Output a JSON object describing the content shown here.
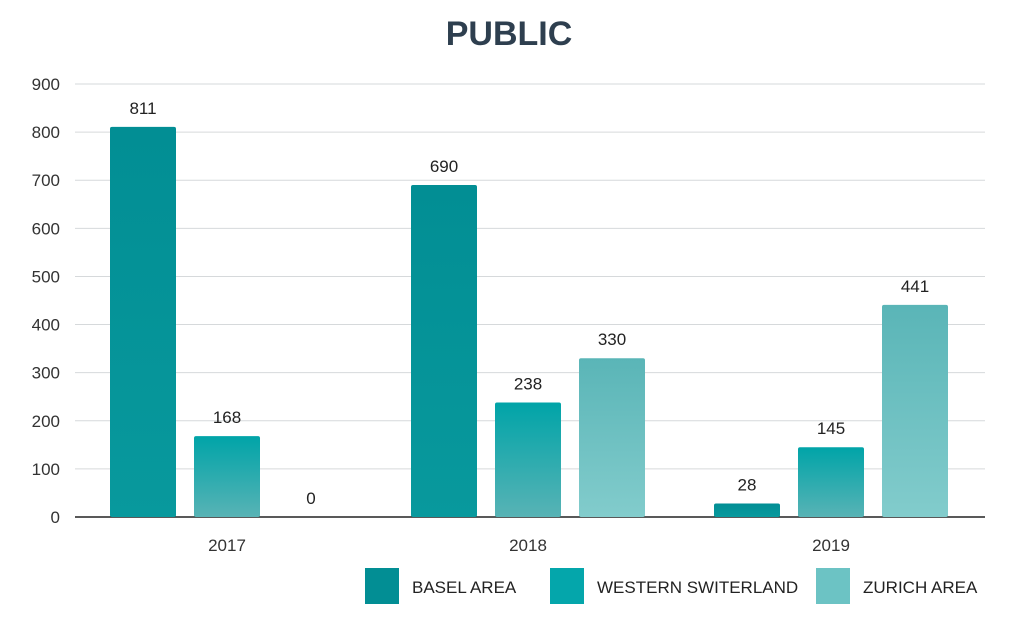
{
  "chart_data": {
    "type": "bar",
    "title": "PUBLIC",
    "xlabel": "",
    "ylabel": "",
    "categories": [
      "2017",
      "2018",
      "2019"
    ],
    "series": [
      {
        "name": "BASEL AREA",
        "values": [
          811,
          690,
          28
        ],
        "color": "#028e94"
      },
      {
        "name": "WESTERN SWITERLAND",
        "values": [
          168,
          238,
          145
        ],
        "color": "#04a6ab"
      },
      {
        "name": "ZURICH AREA",
        "values": [
          0,
          330,
          441
        ],
        "color": "#6cc3c4"
      }
    ],
    "ylim": [
      0,
      900
    ],
    "yticks": [
      0,
      100,
      200,
      300,
      400,
      500,
      600,
      700,
      800,
      900
    ],
    "value_labels": {
      "BASEL AREA": [
        "811",
        "690",
        "28"
      ],
      "WESTERN SWITERLAND": [
        "168",
        "238",
        "145"
      ],
      "ZURICH AREA": [
        "0",
        "330",
        "441"
      ]
    },
    "grid": true,
    "legend_position": "bottom-right"
  }
}
